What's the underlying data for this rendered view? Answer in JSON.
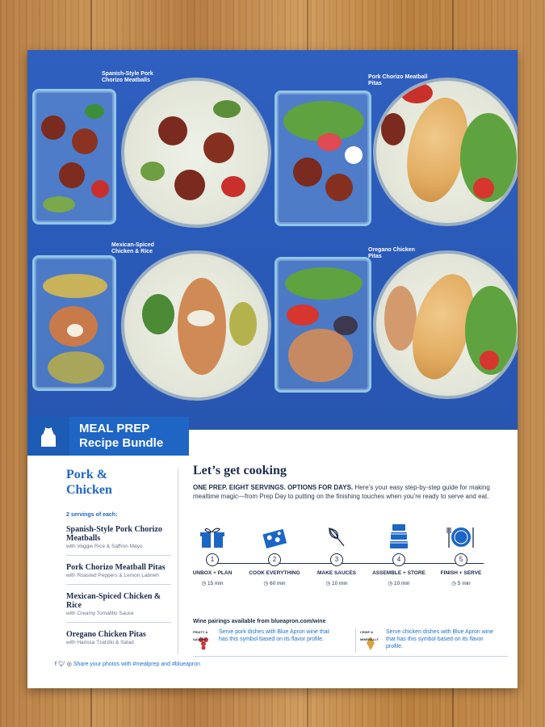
{
  "photo": {
    "captions": [
      {
        "text": "Spanish-Style Pork Chorizo Meatballs"
      },
      {
        "text": "Pork Chorizo Meatball Pitas"
      },
      {
        "text": "Mexican-Spiced Chicken & Rice"
      },
      {
        "text": "Oregano Chicken Pitas"
      }
    ]
  },
  "banner": {
    "line1": "MEAL PREP",
    "line2": "Recipe Bundle",
    "icon": "apron-icon"
  },
  "left": {
    "title_line1": "Pork &",
    "title_line2": "Chicken",
    "servings": "2 servings of each:",
    "recipes": [
      {
        "name": "Spanish-Style Pork Chorizo Meatballs",
        "with": "with Veggie Rice & Saffron Mayo"
      },
      {
        "name": "Pork Chorizo Meatball Pitas",
        "with": "with Roasted Peppers & Lemon Labneh"
      },
      {
        "name": "Mexican-Spiced Chicken & Rice",
        "with": "with Creamy Tomatillo Sauce"
      },
      {
        "name": "Oregano Chicken Pitas",
        "with": "with Harissa Tzatziki & Salad"
      }
    ],
    "social": "Share your photos with #mealprep and #blueapron"
  },
  "main": {
    "heading": "Let’s get cooking",
    "intro_bold": "ONE PREP. EIGHT SERVINGS. OPTIONS FOR DAYS.",
    "intro_rest": " Here’s your easy step-by-step guide for making mealtime magic—from Prep Day to putting on the finishing touches when you’re ready to serve and eat.",
    "steps": [
      {
        "num": "1",
        "name": "UNBOX + PLAN",
        "time": "15 min",
        "icon": "box-icon"
      },
      {
        "num": "2",
        "name": "COOK EVERYTHING",
        "time": "60 min",
        "icon": "sheet-pan-icon"
      },
      {
        "num": "3",
        "name": "MAKE SAUCES",
        "time": "10 min",
        "icon": "whisk-icon"
      },
      {
        "num": "4",
        "name": "ASSEMBLE + STORE",
        "time": "10 min",
        "icon": "containers-icon"
      },
      {
        "num": "5",
        "name": "FINISH + SERVE",
        "time": "5 min",
        "icon": "plate-icon"
      }
    ],
    "wine_heading": "Wine pairings available from blueapron.com/wine",
    "wines": [
      {
        "badge": "FRUITY & SAVORY",
        "text": "Serve pork dishes with Blue Apron wine that has this symbol based on its flavor profile."
      },
      {
        "badge": "CRISP & MINERALLY",
        "text": "Serve chicken dishes with Blue Apron wine that has this symbol based on its flavor profile."
      }
    ]
  },
  "colors": {
    "brand_blue": "#1f66c4",
    "navy": "#1c2b4a",
    "photo_bg": "#2a5ab8"
  }
}
